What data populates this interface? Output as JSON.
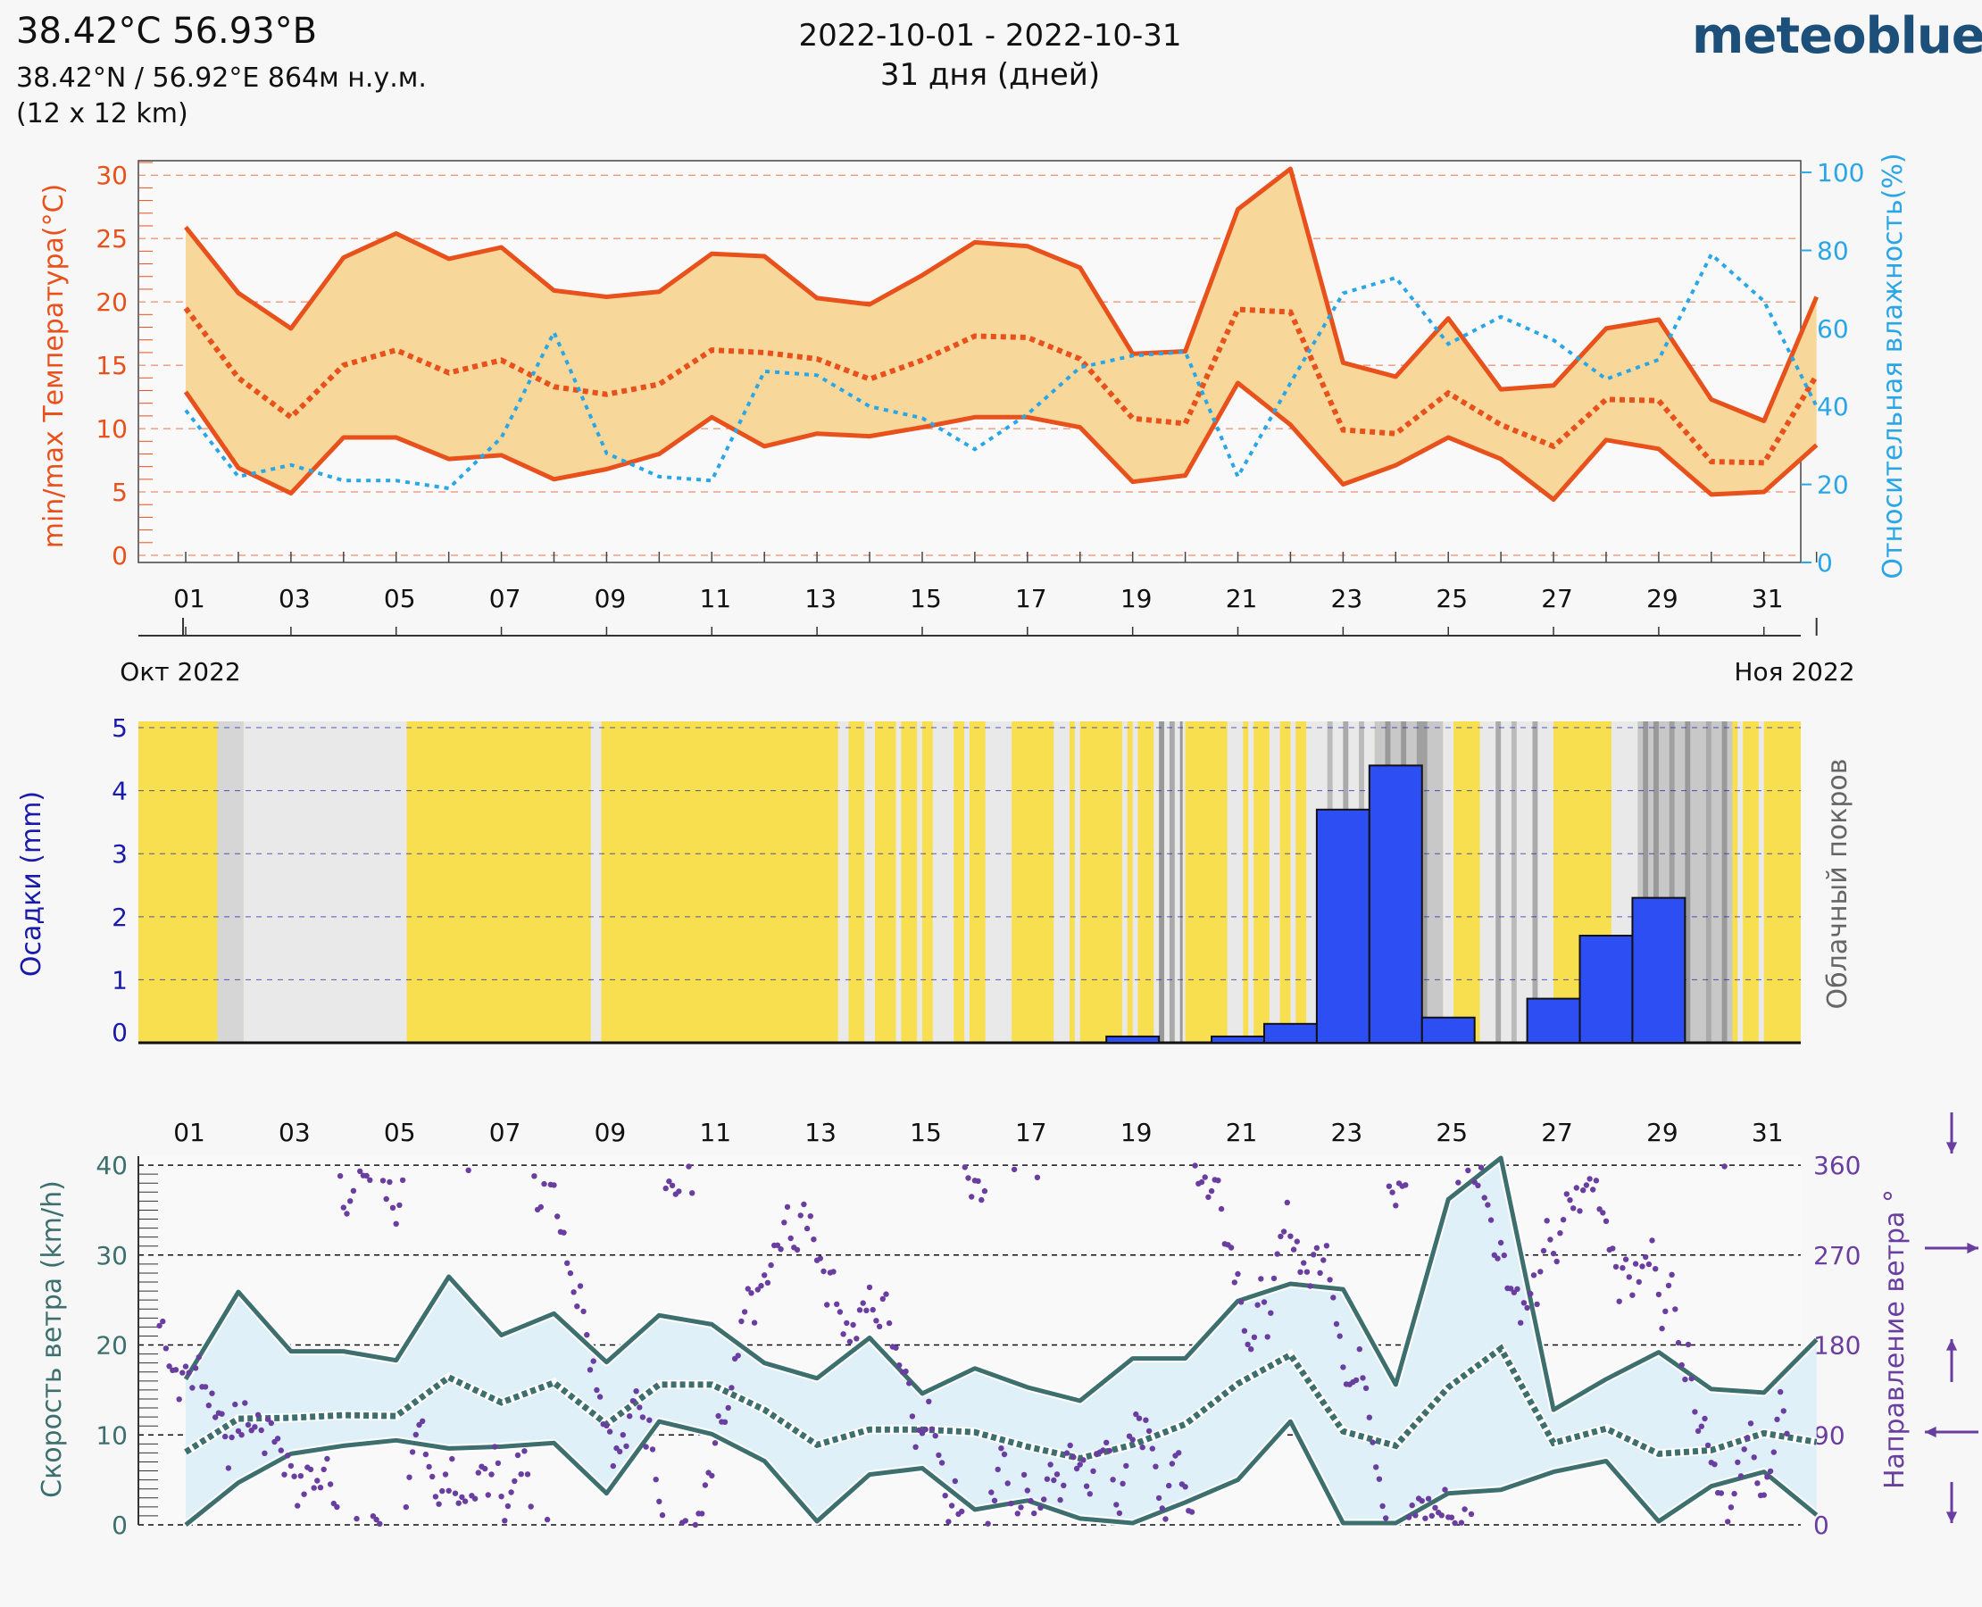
{
  "header": {
    "title": "38.42°C 56.93°B",
    "coords": "38.42°N / 56.92°E   864м н.у.м.",
    "grid": "(12 x 12 km)",
    "date_range": "2022-10-01 - 2022-10-31",
    "days": "31 дня (дней)",
    "logo": "meteoblue"
  },
  "colors": {
    "temp": "#e8501c",
    "temp_fill": "#f7d89a",
    "humidity": "#2aa6e6",
    "precip": "#2d4ef2",
    "precip_axis": "#1a1aaa",
    "sun": "#f8df50",
    "wind": "#3e6f6f",
    "wind_fill": "#dff0f8",
    "wind_dir": "#6a3ea0"
  },
  "chart_data": [
    {
      "type": "line",
      "title": "Temperature and relative humidity",
      "x": [
        1,
        2,
        3,
        4,
        5,
        6,
        7,
        8,
        9,
        10,
        11,
        12,
        13,
        14,
        15,
        16,
        17,
        18,
        19,
        20,
        21,
        22,
        23,
        24,
        25,
        26,
        27,
        28,
        29,
        30,
        31,
        32
      ],
      "x_tick_labels": [
        "01",
        "03",
        "05",
        "07",
        "09",
        "11",
        "13",
        "15",
        "17",
        "19",
        "21",
        "23",
        "25",
        "27",
        "29",
        "31"
      ],
      "ylabel": "min/max Температура(°C)",
      "ylim": [
        0,
        31
      ],
      "y_ticks": [
        0,
        5,
        10,
        15,
        20,
        25,
        30
      ],
      "y2label": "Относительная влажность(%)",
      "y2lim": [
        0,
        103
      ],
      "y2_ticks": [
        0,
        20,
        40,
        60,
        80,
        100
      ],
      "month_labels": [
        "Окт 2022",
        "Ноя 2022"
      ],
      "series": [
        {
          "name": "max temperature",
          "axis": "left",
          "style": "solid",
          "values": [
            25.9,
            20.7,
            17.9,
            23.5,
            25.4,
            23.4,
            24.3,
            20.9,
            20.4,
            20.8,
            23.8,
            23.6,
            20.3,
            19.8,
            22.1,
            24.7,
            24.4,
            22.7,
            15.9,
            16.1,
            27.3,
            30.5,
            15.2,
            14.1,
            18.7,
            13.1,
            13.4,
            17.9,
            18.6,
            12.3,
            10.6,
            20.4
          ]
        },
        {
          "name": "mean temperature",
          "axis": "left",
          "style": "dotted",
          "values": [
            19.5,
            14.0,
            10.9,
            15.0,
            16.2,
            14.4,
            15.4,
            13.3,
            12.7,
            13.5,
            16.2,
            16.0,
            15.5,
            13.9,
            15.4,
            17.3,
            17.2,
            15.5,
            10.8,
            10.4,
            19.4,
            19.2,
            9.9,
            9.6,
            12.8,
            10.3,
            8.6,
            12.3,
            12.2,
            7.4,
            7.3,
            14.2
          ]
        },
        {
          "name": "min temperature",
          "axis": "left",
          "style": "solid",
          "values": [
            12.9,
            6.9,
            4.9,
            9.3,
            9.3,
            7.6,
            7.9,
            6.0,
            6.8,
            8.0,
            10.9,
            8.6,
            9.6,
            9.4,
            10.1,
            10.9,
            10.9,
            10.1,
            5.8,
            6.3,
            13.6,
            10.3,
            5.6,
            7.1,
            9.3,
            7.6,
            4.4,
            9.1,
            8.4,
            4.8,
            5.0,
            8.7
          ]
        },
        {
          "name": "relative humidity",
          "axis": "right",
          "style": "dotted",
          "values": [
            39,
            22,
            25,
            21,
            21,
            19,
            32,
            59,
            28,
            22,
            21,
            49,
            48,
            40,
            37,
            29,
            38,
            50,
            53,
            54,
            22,
            46,
            69,
            73,
            56,
            63,
            57,
            47,
            52,
            79,
            67,
            40
          ]
        }
      ]
    },
    {
      "type": "bar",
      "title": "Precipitation and cloud cover",
      "x": [
        1,
        2,
        3,
        4,
        5,
        6,
        7,
        8,
        9,
        10,
        11,
        12,
        13,
        14,
        15,
        16,
        17,
        18,
        19,
        20,
        21,
        22,
        23,
        24,
        25,
        26,
        27,
        28,
        29,
        30,
        31,
        32
      ],
      "ylabel": "Осадки (mm)",
      "y2label": "Облачный покров",
      "ylim": [
        0,
        5.1
      ],
      "y_ticks": [
        0,
        1,
        2,
        3,
        4,
        5
      ],
      "values": [
        0,
        0,
        0,
        0,
        0,
        0,
        0,
        0,
        0,
        0,
        0,
        0,
        0,
        0,
        0,
        0,
        0,
        0,
        0.1,
        0,
        0.1,
        0.3,
        3.7,
        4.4,
        0.4,
        0,
        0.7,
        1.7,
        2.3,
        0,
        0,
        0
      ],
      "cloud_cover": [
        [
          1.0,
          1.5,
          "#d6d6d6"
        ],
        [
          1.5,
          4.6,
          "#e9e9e9"
        ],
        [
          8.1,
          8.3,
          "#e9e9e9"
        ],
        [
          12.8,
          13.0,
          "#e9e9e9"
        ],
        [
          13.3,
          13.5,
          "#e9e9e9"
        ],
        [
          13.9,
          14.0,
          "#e9e9e9"
        ],
        [
          14.3,
          14.4,
          "#e9e9e9"
        ],
        [
          14.6,
          15.0,
          "#e9e9e9"
        ],
        [
          15.2,
          15.3,
          "#e9e9e9"
        ],
        [
          15.6,
          16.1,
          "#e9e9e9"
        ],
        [
          16.9,
          17.2,
          "#e9e9e9"
        ],
        [
          17.3,
          17.4,
          "#e9e9e9"
        ],
        [
          18.2,
          18.3,
          "#e9e9e9"
        ],
        [
          18.4,
          18.5,
          "#e9e9e9"
        ],
        [
          18.8,
          19.4,
          "#e9e9e9"
        ],
        [
          18.9,
          19.0,
          "#999999"
        ],
        [
          19.1,
          19.2,
          "#aaaaaa"
        ],
        [
          19.3,
          19.35,
          "#999999"
        ],
        [
          20.2,
          20.5,
          "#e9e9e9"
        ],
        [
          20.6,
          20.7,
          "#e9e9e9"
        ],
        [
          21.0,
          21.2,
          "#e9e9e9"
        ],
        [
          21.4,
          21.5,
          "#e9e9e9"
        ],
        [
          21.7,
          23.0,
          "#e9e9e9"
        ],
        [
          22.1,
          22.2,
          "#bbbbbb"
        ],
        [
          22.4,
          22.5,
          "#aaaaaa"
        ],
        [
          22.7,
          22.8,
          "#bbbbbb"
        ],
        [
          23.0,
          24.3,
          "#c8c8c8"
        ],
        [
          23.2,
          23.3,
          "#999999"
        ],
        [
          23.5,
          23.6,
          "#999999"
        ],
        [
          23.8,
          24.0,
          "#a0a0a0"
        ],
        [
          24.3,
          24.5,
          "#e9e9e9"
        ],
        [
          25.0,
          26.4,
          "#e9e9e9"
        ],
        [
          25.3,
          25.4,
          "#aaaaaa"
        ],
        [
          25.6,
          25.7,
          "#bbbbbb"
        ],
        [
          26.0,
          26.1,
          "#aaaaaa"
        ],
        [
          27.5,
          28.0,
          "#e9e9e9"
        ],
        [
          28.0,
          29.8,
          "#c8c8c8"
        ],
        [
          28.1,
          28.2,
          "#999999"
        ],
        [
          28.3,
          28.4,
          "#999999"
        ],
        [
          28.6,
          28.7,
          "#a0a0a0"
        ],
        [
          28.9,
          29.0,
          "#999999"
        ],
        [
          29.3,
          29.4,
          "#aaaaaa"
        ],
        [
          29.6,
          29.7,
          "#999999"
        ],
        [
          29.9,
          30.0,
          "#e9e9e9"
        ],
        [
          30.3,
          30.4,
          "#e9e9e9"
        ]
      ]
    },
    {
      "type": "line",
      "title": "Wind speed and direction",
      "x": [
        1,
        2,
        3,
        4,
        5,
        6,
        7,
        8,
        9,
        10,
        11,
        12,
        13,
        14,
        15,
        16,
        17,
        18,
        19,
        20,
        21,
        22,
        23,
        24,
        25,
        26,
        27,
        28,
        29,
        30,
        31,
        32
      ],
      "x_tick_labels": [
        "01",
        "03",
        "05",
        "07",
        "09",
        "11",
        "13",
        "15",
        "17",
        "19",
        "21",
        "23",
        "25",
        "27",
        "29",
        "31"
      ],
      "ylabel": "Скорость ветра (km/h)",
      "ylim": [
        0,
        41
      ],
      "y_ticks": [
        0,
        10,
        20,
        30,
        40
      ],
      "y2label": "Направление ветра °",
      "y2lim": [
        0,
        369
      ],
      "y2_ticks": [
        0,
        90,
        180,
        270,
        360
      ],
      "series": [
        {
          "name": "max wind speed",
          "style": "solid",
          "values": [
            16.2,
            25.9,
            19.3,
            19.3,
            18.3,
            27.6,
            21.1,
            23.5,
            18.1,
            23.3,
            22.3,
            18.0,
            16.3,
            20.8,
            14.6,
            17.4,
            15.3,
            13.8,
            18.5,
            18.5,
            24.9,
            26.8,
            26.2,
            15.6,
            36.2,
            40.8,
            12.8,
            16.2,
            19.2,
            15.1,
            14.7,
            20.6
          ]
        },
        {
          "name": "mean wind speed",
          "style": "dotted",
          "values": [
            8.1,
            11.8,
            11.9,
            12.2,
            12.1,
            16.4,
            13.6,
            15.8,
            11.2,
            15.6,
            15.6,
            12.8,
            8.9,
            10.6,
            10.6,
            10.3,
            8.7,
            7.4,
            8.9,
            11.2,
            15.7,
            18.9,
            10.4,
            8.8,
            15.3,
            19.6,
            9.1,
            10.7,
            7.9,
            8.3,
            10.2,
            9.2
          ]
        },
        {
          "name": "min wind speed",
          "style": "solid",
          "values": [
            0,
            4.7,
            7.9,
            8.8,
            9.4,
            8.5,
            8.7,
            9.1,
            3.5,
            11.5,
            10.1,
            7.1,
            0.4,
            5.6,
            6.3,
            1.7,
            2.7,
            0.7,
            0.2,
            2.5,
            5.0,
            11.5,
            0.2,
            0.2,
            3.5,
            3.9,
            5.9,
            7.1,
            0.4,
            4.3,
            5.9,
            1.1
          ]
        }
      ]
    }
  ]
}
